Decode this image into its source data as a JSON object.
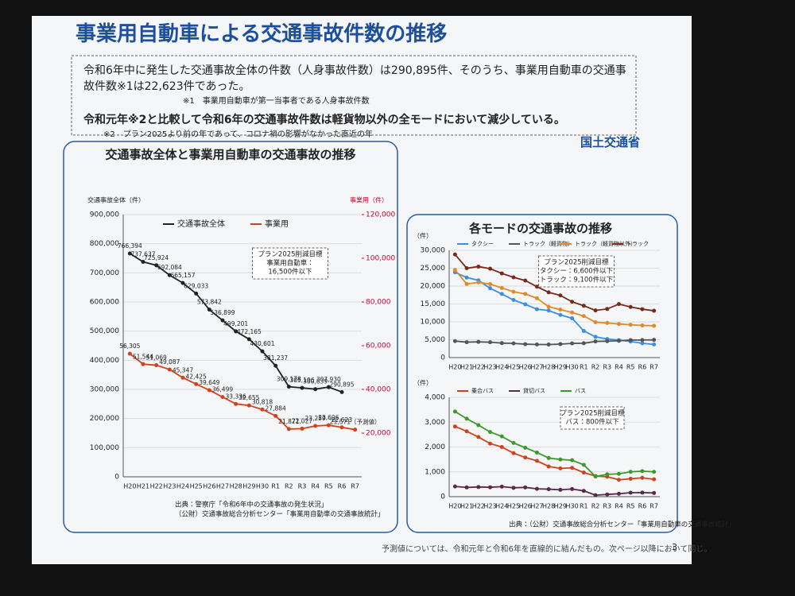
{
  "header": {
    "title": "事業用自動車による交通事故件数の推移",
    "org": "国土交通省"
  },
  "bullets": [
    "令和6年中に発生した交通事故全体の件数（人身事故件数）は290,895件、そのうち、事業用自動車の交通事故件数※1は22,623件であった。",
    "令和元年※2と比較して令和6年の交通事故件数は軽貨物以外の全モードにおいて減少している。"
  ],
  "notes": [
    "※1　事業用自動車が第一当事者である人身事故件数",
    "※2　プラン2025より前の年であって、コロナ禍の影響がなかった直近の年"
  ],
  "footer": {
    "note": "予測値については、令和元年と令和6年を直線的に結んだもの。次ページ以降において同じ。",
    "page": "3"
  },
  "chart_data": [
    {
      "type": "line",
      "title": "交通事故全体と事業用自動車の交通事故の推移",
      "ylabel": "交通事故全体（件）",
      "y2label": "事業用（件）",
      "legend": "top-left",
      "categories": [
        "H20",
        "H21",
        "H22",
        "H23",
        "H24",
        "H25",
        "H26",
        "H27",
        "H28",
        "H29",
        "H30",
        "R1",
        "R2",
        "R3",
        "R4",
        "R5",
        "R6",
        "R7"
      ],
      "series": [
        {
          "name": "交通事故全体",
          "color": "#222222",
          "values": [
            766394,
            737637,
            725924,
            692084,
            665157,
            629033,
            573842,
            536899,
            499201,
            472165,
            430601,
            381237,
            309178,
            305196,
            300839,
            307930,
            290895,
            null
          ],
          "value_labels": [
            "766,394",
            "737,637",
            "725,924",
            "692,084",
            "665,157",
            "629,033",
            "573,842",
            "536,899",
            "499,201",
            "472,165",
            "430,601",
            "381,237",
            "309,178",
            "305,196",
            "300,839",
            "307,930",
            "290,895",
            null
          ]
        },
        {
          "name": "事業用",
          "color": "#d0421b",
          "axis": "y2",
          "values": [
            56305,
            51544,
            51069,
            49087,
            45347,
            42425,
            39649,
            36499,
            33336,
            32655,
            30818,
            27884,
            21871,
            22027,
            23259,
            23606,
            22623,
            21571
          ],
          "value_labels": [
            "56,305",
            "51,544",
            "51,069",
            "49,087",
            "45,347",
            "42,425",
            "39,649",
            "36,499",
            "33,336",
            "32,655",
            "30,818",
            "27,884",
            "21,871",
            "22,027",
            "23,259",
            "23,606",
            "22,623",
            "21,571（予測値）"
          ]
        }
      ],
      "ylim": [
        0,
        900000
      ],
      "yticks": [
        0,
        {
          "value": 100000,
          "label": "100,000"
        },
        {
          "value": 200000,
          "label": "200,000"
        },
        {
          "value": 300000,
          "label": "300,000"
        },
        {
          "value": 400000,
          "label": "400,000"
        },
        {
          "value": 500000,
          "label": "500,000"
        },
        {
          "value": 600000,
          "label": "600,000"
        },
        {
          "value": 700000,
          "label": "700,000"
        },
        {
          "value": 800000,
          "label": "800,000"
        },
        {
          "value": 900000,
          "label": "900,000"
        }
      ],
      "y2lim": [
        0,
        120000
      ],
      "y2ticks": [
        {
          "value": 20000,
          "label": "20,000"
        },
        {
          "value": 40000,
          "label": "40,000"
        },
        {
          "value": 60000,
          "label": "60,000"
        },
        {
          "value": 80000,
          "label": "80,000"
        },
        {
          "value": 100000,
          "label": "100,000"
        },
        {
          "value": 120000,
          "label": "120,000"
        }
      ],
      "annotation": [
        "プラン2025削減目標",
        "事業用自動車：",
        "16,500件以下"
      ],
      "source": [
        "出典：警察庁「令和6年中の交通事故の発生状況」",
        "（公財）交通事故総合分析センター「事業用自動車の交通事故統計」"
      ]
    },
    {
      "type": "line",
      "title": "各モードの交通事故の推移",
      "ylabel": "（件）",
      "legend": "top",
      "categories": [
        "H20",
        "H21",
        "H22",
        "H23",
        "H24",
        "H25",
        "H26",
        "H27",
        "H28",
        "H29",
        "H30",
        "R1",
        "R2",
        "R3",
        "R4",
        "R5",
        "R6",
        "R7"
      ],
      "series": [
        {
          "name": "タクシー",
          "color": "#3b8ee0",
          "values": [
            23852,
            22375,
            21611,
            19381,
            17799,
            16113,
            14902,
            13526,
            13171,
            11950,
            10990,
            7458,
            5800,
            5200,
            4900,
            4500,
            3999,
            3700
          ]
        },
        {
          "name": "トラック（軽貨物）",
          "color": "#555555",
          "values": [
            4621,
            4316,
            4403,
            4297,
            4065,
            3971,
            3763,
            3669,
            3654,
            3783,
            3977,
            4015,
            4516,
            4600,
            4700,
            4900,
            4922,
            4961
          ]
        },
        {
          "name": "トラック（軽貨物以外）",
          "color": "#e08a2a",
          "values": [
            24520,
            20581,
            21049,
            20563,
            19474,
            18415,
            17805,
            16600,
            14217,
            13422,
            12617,
            11614,
            9900,
            9700,
            9400,
            9200,
            9000,
            8900
          ]
        },
        {
          "name": "トラック",
          "color": "#7a2a1a",
          "values": [
            28843,
            24997,
            25452,
            24865,
            23539,
            22452,
            21564,
            19825,
            18254,
            17396,
            15606,
            14500,
            13200,
            13600,
            14963,
            14173,
            13540,
            13100
          ]
        }
      ],
      "ylim": [
        0,
        30000
      ],
      "yticks": [
        0,
        {
          "value": 5000,
          "label": "5,000"
        },
        {
          "value": 10000,
          "label": "10,000"
        },
        {
          "value": 15000,
          "label": "15,000"
        },
        {
          "value": 20000,
          "label": "20,000"
        },
        {
          "value": 25000,
          "label": "25,000"
        },
        {
          "value": 30000,
          "label": "30,000"
        }
      ],
      "annotation": [
        "プラン2025削減目標",
        "タクシー：6,600件以下",
        "トラック：9,100件以下"
      ]
    },
    {
      "type": "line",
      "ylabel": "（件）",
      "legend": "top",
      "categories": [
        "H20",
        "H21",
        "H22",
        "H23",
        "H24",
        "H25",
        "H26",
        "H27",
        "H28",
        "H29",
        "H30",
        "R1",
        "R2",
        "R3",
        "R4",
        "R5",
        "R6",
        "R7"
      ],
      "series": [
        {
          "name": "乗合バス",
          "color": "#d0421b",
          "values": [
            2826,
            2633,
            2403,
            2138,
            2000,
            1751,
            1578,
            1443,
            1217,
            1141,
            1160,
            973,
            830,
            803,
            680,
            720,
            760,
            700
          ]
        },
        {
          "name": "貸切バス",
          "color": "#5a2a4a",
          "values": [
            413,
            371,
            390,
            378,
            405,
            358,
            374,
            317,
            302,
            276,
            308,
            234,
            60,
            90,
            118,
            160,
            163,
            150
          ]
        },
        {
          "name": "バス",
          "color": "#3a9a2a",
          "values": [
            3428,
            3139,
            2882,
            2605,
            2427,
            2164,
            1972,
            1777,
            1556,
            1498,
            1468,
            1282,
            812,
            900,
            920,
            1000,
            1027,
            1000
          ]
        }
      ],
      "ylim": [
        0,
        4000
      ],
      "yticks": [
        0,
        {
          "value": 1000,
          "label": "1,000"
        },
        {
          "value": 2000,
          "label": "2,000"
        },
        {
          "value": 3000,
          "label": "3,000"
        },
        {
          "value": 4000,
          "label": "4,000"
        }
      ],
      "annotation": [
        "プラン2025削減目標",
        "バス：800件以下"
      ],
      "source": [
        "出典：（公財）交通事故総合分析センター「事業用自動車の交通事故統計」"
      ]
    }
  ]
}
